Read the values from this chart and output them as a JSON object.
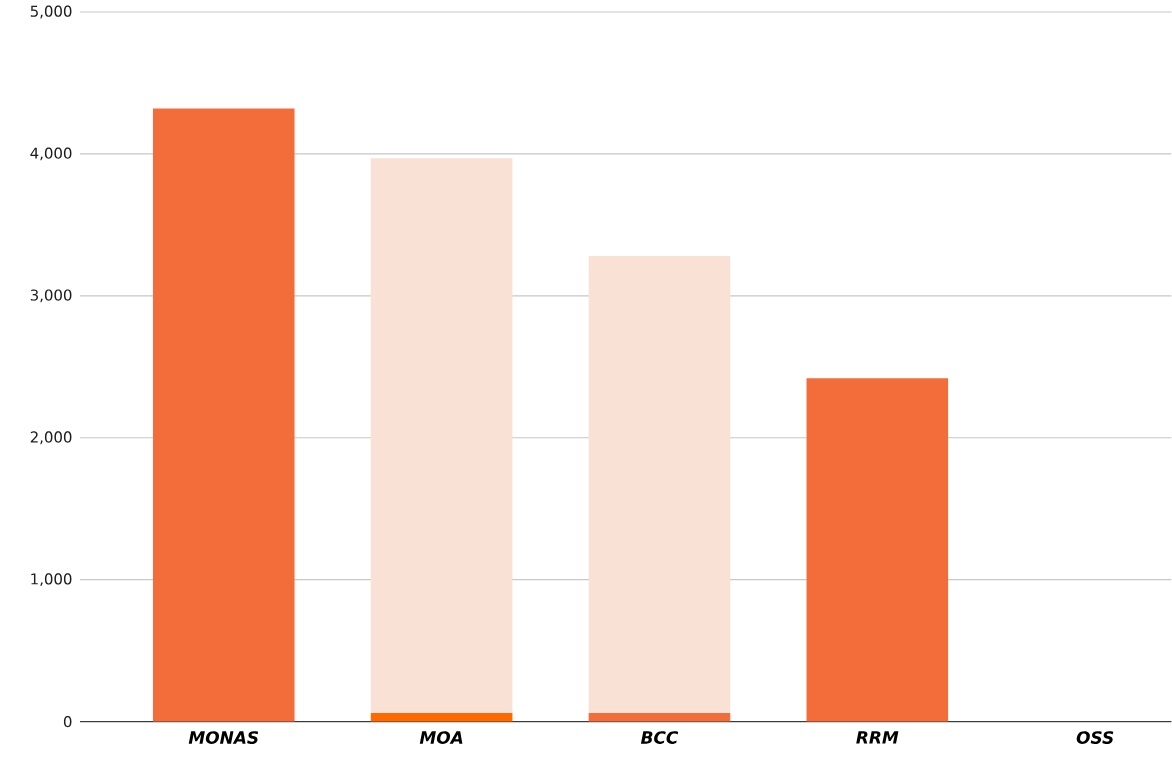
{
  "chart_data": {
    "type": "bar",
    "stacked": true,
    "grid": "y",
    "categories": [
      "MONAS",
      "MOA",
      "BCC",
      "RRM",
      "OSS"
    ],
    "series": [
      {
        "colors": [
          "#f26d3a",
          "#ff6a00",
          "#f26d3a",
          "#f26d3a",
          "#f26d3a"
        ],
        "values": [
          4320,
          60,
          60,
          2420,
          0
        ]
      },
      {
        "color": "#fae1d6",
        "values": [
          0,
          3910,
          3220,
          0,
          0
        ]
      }
    ],
    "ylim": [
      0,
      5000
    ],
    "yticks": [
      0,
      {
        "value": 1000,
        "label": "1,000"
      },
      {
        "value": 2000,
        "label": "2,000"
      },
      {
        "value": 3000,
        "label": "3,000"
      },
      {
        "value": 4000,
        "label": "4,000"
      },
      {
        "value": 5000,
        "label": "5,000"
      }
    ]
  }
}
